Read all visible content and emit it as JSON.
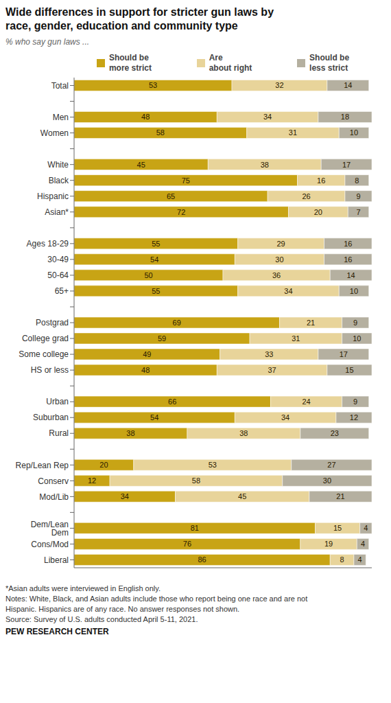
{
  "chart_data": {
    "type": "bar",
    "title": "Wide differences in support for stricter gun laws by\nrace, gender, education and community type",
    "subtitle": "% who say gun laws ...",
    "orientation": "horizontal",
    "stacked": true,
    "data_labels": true,
    "tick_labels": false,
    "grid": false,
    "legend": "top",
    "xlim": [
      0,
      100
    ],
    "categories": [
      "Total",
      null,
      "Men",
      "Women",
      null,
      "White",
      "Black",
      "Hispanic",
      "Asian*",
      null,
      "Ages 18-29",
      "30-49",
      "50-64",
      "65+",
      null,
      "Postgrad",
      "College grad",
      "Some college",
      "HS or less",
      null,
      "Urban",
      "Suburban",
      "Rural",
      null,
      "Rep/Lean Rep",
      "Conserv",
      "Mod/Lib",
      null,
      "Dem/Lean Dem",
      "Cons/Mod",
      "Liberal"
    ],
    "series": [
      {
        "name": "Should be\nmore strict",
        "color": "#c8a415",
        "values": [
          53,
          null,
          48,
          58,
          null,
          45,
          75,
          65,
          72,
          null,
          55,
          54,
          50,
          55,
          null,
          69,
          59,
          49,
          48,
          null,
          66,
          54,
          38,
          null,
          20,
          12,
          34,
          null,
          81,
          76,
          86
        ]
      },
      {
        "name": "Are\nabout right",
        "color": "#e8d49a",
        "values": [
          32,
          null,
          34,
          31,
          null,
          38,
          16,
          26,
          20,
          null,
          29,
          30,
          36,
          34,
          null,
          21,
          31,
          33,
          37,
          null,
          24,
          34,
          38,
          null,
          53,
          58,
          45,
          null,
          15,
          19,
          8
        ]
      },
      {
        "name": "Should be\nless strict",
        "color": "#b5b0a0",
        "values": [
          14,
          null,
          18,
          10,
          null,
          17,
          8,
          9,
          7,
          null,
          16,
          16,
          14,
          10,
          null,
          9,
          10,
          17,
          15,
          null,
          9,
          12,
          23,
          null,
          27,
          30,
          21,
          null,
          4,
          4,
          4
        ]
      }
    ],
    "footnote": [
      "*Asian adults were interviewed in English only.",
      "Notes: White, Black, and Asian adults include those who report being one race and are not",
      "Hispanic. Hispanics are of any race. No answer responses not shown.",
      "Source: Survey of U.S. adults conducted April 5-11, 2021."
    ],
    "source": "PEW RESEARCH CENTER"
  }
}
